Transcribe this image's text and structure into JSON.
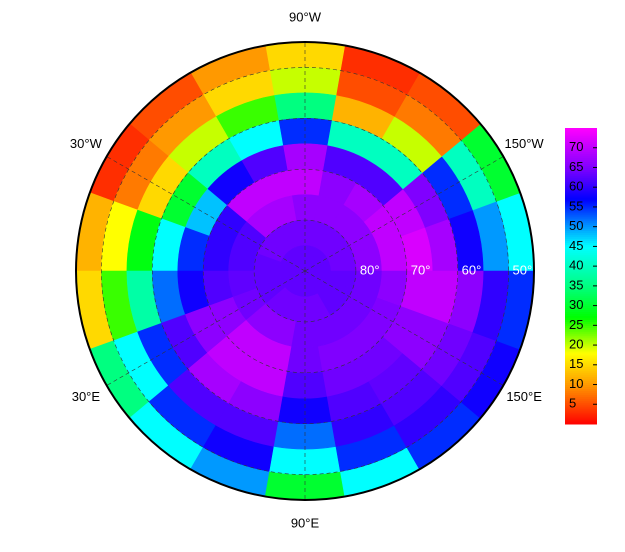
{
  "chart_data": {
    "type": "polar-heatmap",
    "lon_labels": [
      {
        "value": -90,
        "label": "90°W"
      },
      {
        "value": -30,
        "label": "30°W"
      },
      {
        "value": -150,
        "label": "150°W"
      },
      {
        "value": 30,
        "label": "30°E"
      },
      {
        "value": 150,
        "label": "150°E"
      },
      {
        "value": 90,
        "label": "90°E"
      }
    ],
    "lat_labels": [
      {
        "value": 80,
        "label": "80°"
      },
      {
        "value": 70,
        "label": "70°"
      },
      {
        "value": 60,
        "label": "60°"
      },
      {
        "value": 50,
        "label": "50°"
      }
    ],
    "lon_bins": [
      -180,
      -160,
      -140,
      -120,
      -100,
      -80,
      -60,
      -40,
      -20,
      0,
      20,
      40,
      60,
      80,
      100,
      120,
      140,
      160,
      180
    ],
    "lat_bins": [
      45,
      50,
      55,
      60,
      65,
      70,
      75,
      80,
      85,
      90
    ],
    "values": [
      [
        45,
        50,
        58,
        68,
        72,
        70,
        66,
        64,
        63
      ],
      [
        30,
        40,
        55,
        65,
        70,
        70,
        66,
        64,
        63
      ],
      [
        5,
        8,
        20,
        40,
        62,
        68,
        66,
        64,
        63
      ],
      [
        3,
        5,
        12,
        40,
        62,
        66,
        66,
        64,
        63
      ],
      [
        15,
        20,
        35,
        55,
        68,
        70,
        66,
        64,
        63
      ],
      [
        10,
        15,
        25,
        45,
        62,
        70,
        68,
        64,
        63
      ],
      [
        5,
        10,
        20,
        40,
        58,
        70,
        68,
        64,
        63
      ],
      [
        3,
        8,
        15,
        30,
        48,
        60,
        62,
        64,
        63
      ],
      [
        12,
        18,
        28,
        45,
        55,
        60,
        62,
        63,
        63
      ],
      [
        15,
        25,
        38,
        52,
        58,
        62,
        63,
        63,
        63
      ],
      [
        35,
        45,
        55,
        62,
        66,
        66,
        64,
        63,
        63
      ],
      [
        45,
        55,
        62,
        68,
        70,
        70,
        66,
        64,
        63
      ],
      [
        50,
        58,
        62,
        66,
        70,
        70,
        66,
        64,
        63
      ],
      [
        30,
        45,
        52,
        58,
        62,
        64,
        64,
        64,
        63
      ],
      [
        45,
        55,
        60,
        62,
        64,
        65,
        64,
        64,
        63
      ],
      [
        55,
        60,
        62,
        63,
        64,
        65,
        64,
        63,
        63
      ],
      [
        58,
        62,
        64,
        66,
        66,
        65,
        64,
        63,
        63
      ],
      [
        55,
        60,
        66,
        70,
        70,
        66,
        64,
        63,
        63
      ]
    ],
    "clim": [
      0,
      75
    ],
    "colorbar_ticks": [
      5,
      10,
      15,
      20,
      25,
      30,
      35,
      40,
      45,
      50,
      55,
      60,
      65,
      70
    ],
    "colorscale": [
      {
        "value": 0,
        "color": "#ff0000"
      },
      {
        "value": 10,
        "color": "#ff9900"
      },
      {
        "value": 18,
        "color": "#ffff00"
      },
      {
        "value": 27,
        "color": "#00ff00"
      },
      {
        "value": 35,
        "color": "#00ff80"
      },
      {
        "value": 45,
        "color": "#00ffff"
      },
      {
        "value": 50,
        "color": "#0099ff"
      },
      {
        "value": 57,
        "color": "#0000ff"
      },
      {
        "value": 65,
        "color": "#8000ff"
      },
      {
        "value": 75,
        "color": "#ff00ff"
      }
    ]
  }
}
